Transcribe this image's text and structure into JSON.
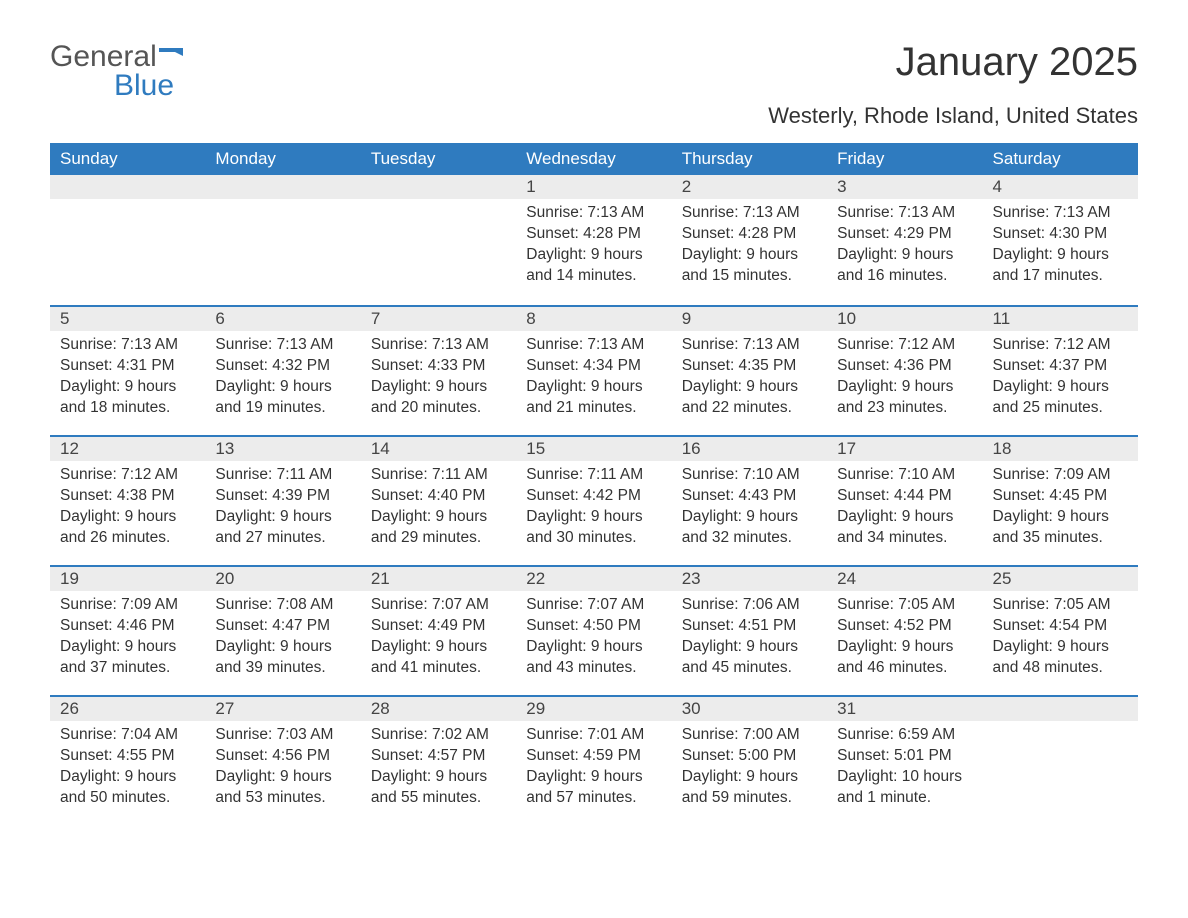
{
  "logo": {
    "general": "General",
    "blue": "Blue"
  },
  "title": "January 2025",
  "subtitle": "Westerly, Rhode Island, United States",
  "colors": {
    "header_bg": "#2f7bbf",
    "header_text": "#ffffff",
    "daynum_bg": "#ececec",
    "body_text": "#333333",
    "logo_gray": "#555555",
    "logo_blue": "#2f7bbf",
    "divider": "#2f7bbf",
    "page_bg": "#ffffff"
  },
  "day_headers": [
    "Sunday",
    "Monday",
    "Tuesday",
    "Wednesday",
    "Thursday",
    "Friday",
    "Saturday"
  ],
  "weeks": [
    [
      null,
      null,
      null,
      {
        "n": "1",
        "sunrise": "7:13 AM",
        "sunset": "4:28 PM",
        "daylight": "9 hours and 14 minutes."
      },
      {
        "n": "2",
        "sunrise": "7:13 AM",
        "sunset": "4:28 PM",
        "daylight": "9 hours and 15 minutes."
      },
      {
        "n": "3",
        "sunrise": "7:13 AM",
        "sunset": "4:29 PM",
        "daylight": "9 hours and 16 minutes."
      },
      {
        "n": "4",
        "sunrise": "7:13 AM",
        "sunset": "4:30 PM",
        "daylight": "9 hours and 17 minutes."
      }
    ],
    [
      {
        "n": "5",
        "sunrise": "7:13 AM",
        "sunset": "4:31 PM",
        "daylight": "9 hours and 18 minutes."
      },
      {
        "n": "6",
        "sunrise": "7:13 AM",
        "sunset": "4:32 PM",
        "daylight": "9 hours and 19 minutes."
      },
      {
        "n": "7",
        "sunrise": "7:13 AM",
        "sunset": "4:33 PM",
        "daylight": "9 hours and 20 minutes."
      },
      {
        "n": "8",
        "sunrise": "7:13 AM",
        "sunset": "4:34 PM",
        "daylight": "9 hours and 21 minutes."
      },
      {
        "n": "9",
        "sunrise": "7:13 AM",
        "sunset": "4:35 PM",
        "daylight": "9 hours and 22 minutes."
      },
      {
        "n": "10",
        "sunrise": "7:12 AM",
        "sunset": "4:36 PM",
        "daylight": "9 hours and 23 minutes."
      },
      {
        "n": "11",
        "sunrise": "7:12 AM",
        "sunset": "4:37 PM",
        "daylight": "9 hours and 25 minutes."
      }
    ],
    [
      {
        "n": "12",
        "sunrise": "7:12 AM",
        "sunset": "4:38 PM",
        "daylight": "9 hours and 26 minutes."
      },
      {
        "n": "13",
        "sunrise": "7:11 AM",
        "sunset": "4:39 PM",
        "daylight": "9 hours and 27 minutes."
      },
      {
        "n": "14",
        "sunrise": "7:11 AM",
        "sunset": "4:40 PM",
        "daylight": "9 hours and 29 minutes."
      },
      {
        "n": "15",
        "sunrise": "7:11 AM",
        "sunset": "4:42 PM",
        "daylight": "9 hours and 30 minutes."
      },
      {
        "n": "16",
        "sunrise": "7:10 AM",
        "sunset": "4:43 PM",
        "daylight": "9 hours and 32 minutes."
      },
      {
        "n": "17",
        "sunrise": "7:10 AM",
        "sunset": "4:44 PM",
        "daylight": "9 hours and 34 minutes."
      },
      {
        "n": "18",
        "sunrise": "7:09 AM",
        "sunset": "4:45 PM",
        "daylight": "9 hours and 35 minutes."
      }
    ],
    [
      {
        "n": "19",
        "sunrise": "7:09 AM",
        "sunset": "4:46 PM",
        "daylight": "9 hours and 37 minutes."
      },
      {
        "n": "20",
        "sunrise": "7:08 AM",
        "sunset": "4:47 PM",
        "daylight": "9 hours and 39 minutes."
      },
      {
        "n": "21",
        "sunrise": "7:07 AM",
        "sunset": "4:49 PM",
        "daylight": "9 hours and 41 minutes."
      },
      {
        "n": "22",
        "sunrise": "7:07 AM",
        "sunset": "4:50 PM",
        "daylight": "9 hours and 43 minutes."
      },
      {
        "n": "23",
        "sunrise": "7:06 AM",
        "sunset": "4:51 PM",
        "daylight": "9 hours and 45 minutes."
      },
      {
        "n": "24",
        "sunrise": "7:05 AM",
        "sunset": "4:52 PM",
        "daylight": "9 hours and 46 minutes."
      },
      {
        "n": "25",
        "sunrise": "7:05 AM",
        "sunset": "4:54 PM",
        "daylight": "9 hours and 48 minutes."
      }
    ],
    [
      {
        "n": "26",
        "sunrise": "7:04 AM",
        "sunset": "4:55 PM",
        "daylight": "9 hours and 50 minutes."
      },
      {
        "n": "27",
        "sunrise": "7:03 AM",
        "sunset": "4:56 PM",
        "daylight": "9 hours and 53 minutes."
      },
      {
        "n": "28",
        "sunrise": "7:02 AM",
        "sunset": "4:57 PM",
        "daylight": "9 hours and 55 minutes."
      },
      {
        "n": "29",
        "sunrise": "7:01 AM",
        "sunset": "4:59 PM",
        "daylight": "9 hours and 57 minutes."
      },
      {
        "n": "30",
        "sunrise": "7:00 AM",
        "sunset": "5:00 PM",
        "daylight": "9 hours and 59 minutes."
      },
      {
        "n": "31",
        "sunrise": "6:59 AM",
        "sunset": "5:01 PM",
        "daylight": "10 hours and 1 minute."
      },
      null
    ]
  ],
  "labels": {
    "sunrise": "Sunrise: ",
    "sunset": "Sunset: ",
    "daylight": "Daylight: "
  },
  "typography": {
    "title_fontsize": 40,
    "subtitle_fontsize": 22,
    "dayhead_fontsize": 17,
    "daynum_fontsize": 17,
    "body_fontsize": 15.5
  }
}
